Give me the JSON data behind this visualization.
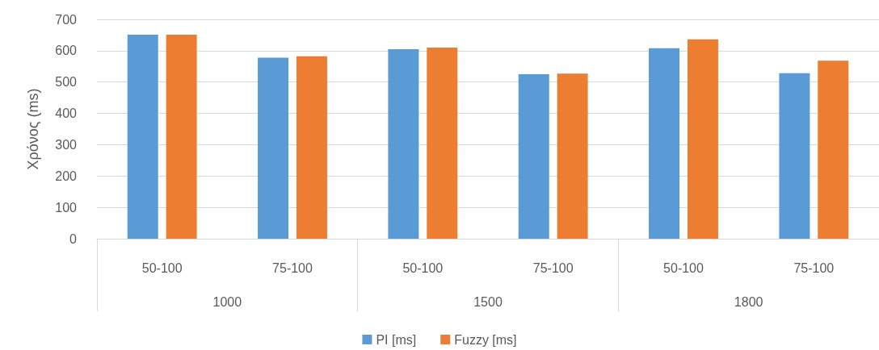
{
  "chart_data": {
    "type": "bar",
    "ylabel": "Χρόνος (ms)",
    "categories": [
      "50-100",
      "75-100",
      "50-100",
      "75-100",
      "50-100",
      "75-100"
    ],
    "annotations": [
      "1000",
      "1500",
      "1800"
    ],
    "series": [
      {
        "name": "PI [ms]",
        "color": "#5b9bd5",
        "values": [
          651,
          578,
          605,
          525,
          608,
          528
        ]
      },
      {
        "name": "Fuzzy [ms]",
        "color": "#ed7d31",
        "values": [
          651,
          582,
          610,
          527,
          636,
          568
        ]
      }
    ],
    "ylim": [
      0,
      700
    ],
    "yticks": [
      0,
      100,
      200,
      300,
      400,
      500,
      600,
      700
    ],
    "grid": "y",
    "legend": "bottom"
  }
}
